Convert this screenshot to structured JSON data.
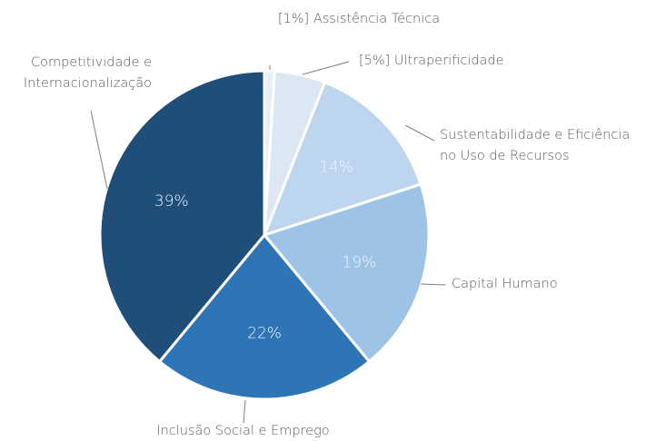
{
  "chart_data": {
    "type": "pie",
    "categories": [
      "[1%] Assistência Técnica",
      "[5%] Ultraperificidade",
      "Sustentabilidade e Eficiência no Uso de Recursos",
      "Capital Humano",
      "Inclusão Social e Emprego",
      "Competitividade e Internacionalização"
    ],
    "values": [
      1,
      5,
      14,
      19,
      22,
      39
    ],
    "value_labels": [
      null,
      null,
      "14%",
      "19%",
      "22%",
      "39%"
    ],
    "colors": [
      "#e9eff7",
      "#dce7f4",
      "#bdd5ee",
      "#9dc3e6",
      "#2e75b6",
      "#1f4e79"
    ]
  }
}
